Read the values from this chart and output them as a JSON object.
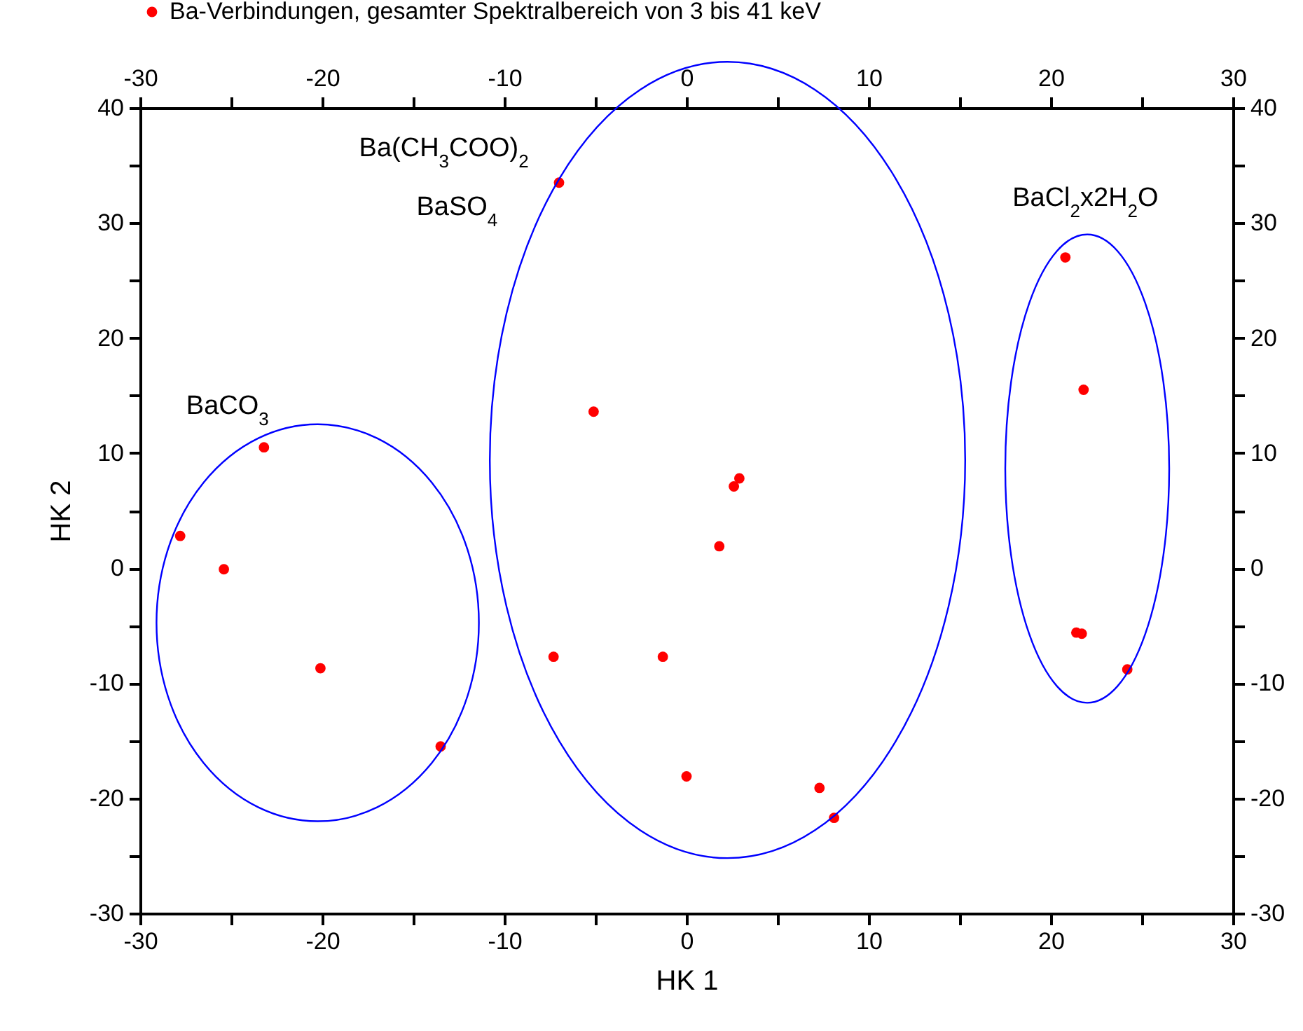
{
  "chart_data": {
    "type": "scatter",
    "xlabel": "HK 1",
    "ylabel": "HK 2",
    "xlim": [
      -30,
      30
    ],
    "xticks": [
      -30,
      {
        "value": -25,
        "label": null
      },
      -20,
      {
        "value": -15,
        "label": null
      },
      -10,
      {
        "value": -5,
        "label": null
      },
      0,
      {
        "value": 5,
        "label": null
      },
      10,
      {
        "value": 15,
        "label": null
      },
      20,
      {
        "value": 25,
        "label": null
      },
      30
    ],
    "ylim": [
      -30,
      40
    ],
    "yticks": [
      -30,
      {
        "value": -25,
        "label": null
      },
      -20,
      {
        "value": -15,
        "label": null
      },
      -10,
      {
        "value": -5,
        "label": null
      },
      0,
      {
        "value": 5,
        "label": null
      },
      10,
      {
        "value": 15,
        "label": null
      },
      20,
      {
        "value": 25,
        "label": null
      },
      30,
      {
        "value": 35,
        "label": null
      },
      40
    ],
    "x2lim": [
      -30,
      30
    ],
    "x2ticks": [
      -30,
      {
        "value": -25,
        "label": null
      },
      -20,
      {
        "value": -15,
        "label": null
      },
      -10,
      {
        "value": -5,
        "label": null
      },
      0,
      {
        "value": 5,
        "label": null
      },
      10,
      {
        "value": 15,
        "label": null
      },
      20,
      {
        "value": 25,
        "label": null
      },
      30
    ],
    "y2lim": [
      -30,
      40
    ],
    "y2ticks": [
      -30,
      {
        "value": -25,
        "label": null
      },
      -20,
      {
        "value": -15,
        "label": null
      },
      -10,
      {
        "value": -5,
        "label": null
      },
      0,
      {
        "value": 5,
        "label": null
      },
      10,
      {
        "value": 15,
        "label": null
      },
      20,
      {
        "value": 25,
        "label": null
      },
      30,
      {
        "value": 35,
        "label": null
      },
      40
    ],
    "series": [
      {
        "name": "Ba-Verbindungen, gesamter Spektralbereich von 3 bis 41 keV",
        "color": "#ff0000",
        "x": [
          -27.8,
          -25.4,
          -23.2,
          -20.1,
          -13.5,
          -7.0,
          -5.1,
          -7.3,
          -1.3,
          0.0,
          1.8,
          2.6,
          2.9,
          7.3,
          8.1,
          20.8,
          21.8,
          21.4,
          21.7,
          24.2
        ],
        "values": [
          2.8,
          -0.1,
          10.5,
          -8.7,
          -15.5,
          33.5,
          13.6,
          -7.7,
          -7.7,
          -18.1,
          1.9,
          7.1,
          7.8,
          -19.1,
          -21.7,
          27.0,
          15.5,
          -5.6,
          -5.7,
          -8.8
        ]
      }
    ],
    "annotations": [
      "Ba(CH$_{3}$COO)$_{2}$",
      "BaSO$_{4}$",
      "BaCO$_{3}$",
      "BaCl$_{2}$x2H$_{2}$O"
    ],
    "marker": "circle",
    "legend": "top"
  }
}
